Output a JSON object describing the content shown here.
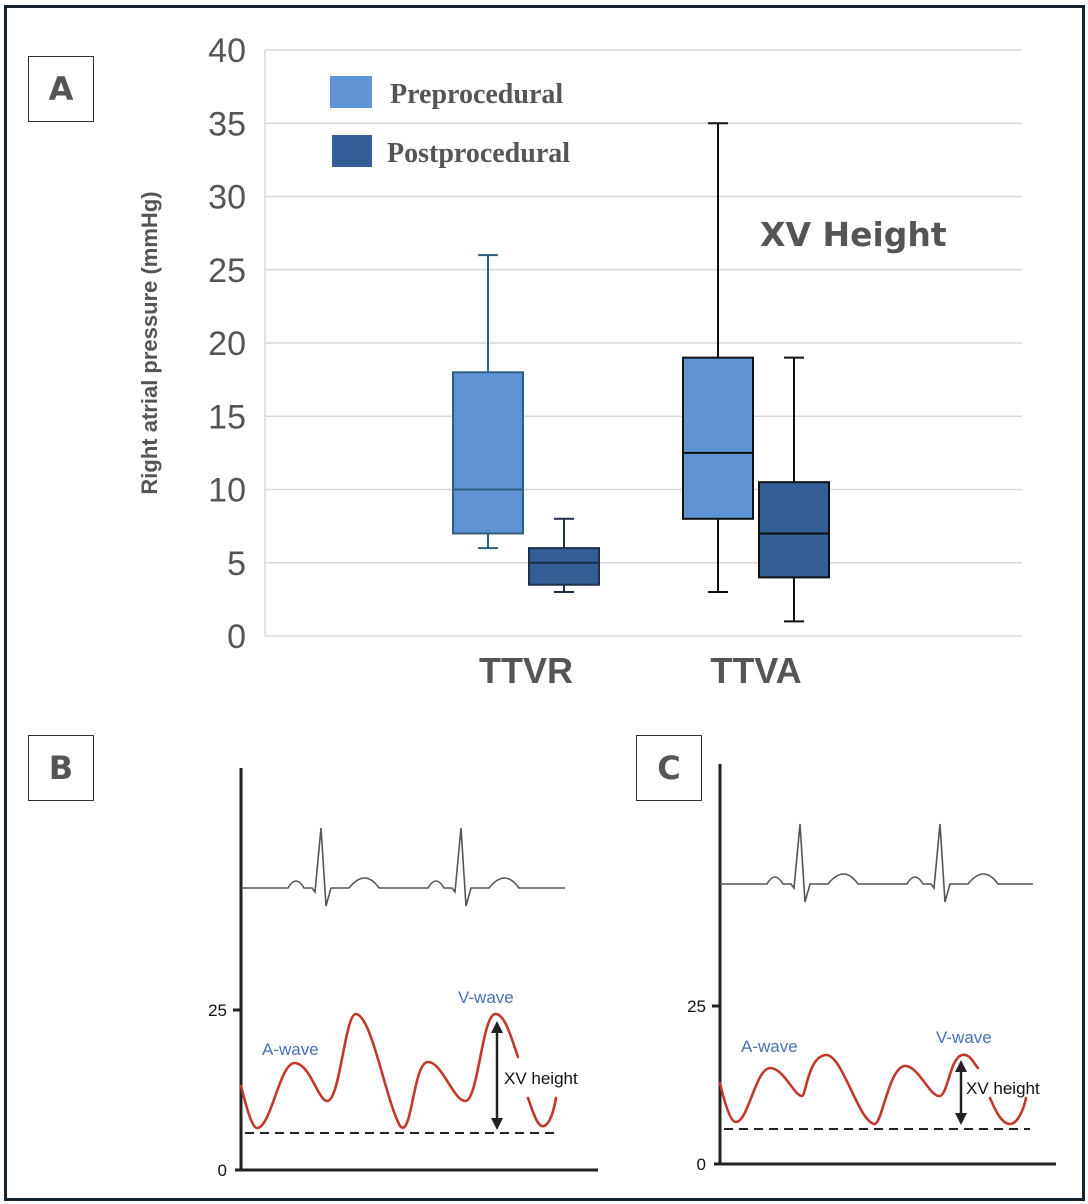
{
  "panels": {
    "A": {
      "label": "A"
    },
    "B": {
      "label": "B"
    },
    "C": {
      "label": "C"
    }
  },
  "colors": {
    "preprocedural": "#5f93d3",
    "postprocedural": "#345f96",
    "gridline": "#d9d9d9",
    "text": "#555555",
    "pressure_wave": "#c0392b",
    "wave_label": "#4a6fb5"
  },
  "chart_data": [
    {
      "type": "boxplot",
      "panel": "A",
      "title": "",
      "annotation": "XV Height",
      "xlabel": "",
      "ylabel": "Right atrial pressure (mmHg)",
      "ylim": [
        0,
        40
      ],
      "yticks": [
        0,
        5,
        10,
        15,
        20,
        25,
        30,
        35,
        40
      ],
      "grid": true,
      "legend_position": "top-left",
      "categories": [
        "TTVR",
        "TTVA"
      ],
      "series": [
        {
          "name": "Preprocedural",
          "color": "#5f93d3",
          "boxes": [
            {
              "category": "TTVR",
              "min": 6,
              "q1": 7,
              "median": 10,
              "q3": 18,
              "max": 26
            },
            {
              "category": "TTVA",
              "min": 3,
              "q1": 8,
              "median": 12.5,
              "q3": 19,
              "max": 35
            }
          ]
        },
        {
          "name": "Postprocedural",
          "color": "#345f96",
          "boxes": [
            {
              "category": "TTVR",
              "min": 3,
              "q1": 3.5,
              "median": 5,
              "q3": 6,
              "max": 8
            },
            {
              "category": "TTVA",
              "min": 1,
              "q1": 4,
              "median": 7,
              "q3": 10.5,
              "max": 19
            }
          ]
        }
      ]
    },
    {
      "type": "line",
      "panel": "B",
      "description": "Schematic ECG and right atrial pressure waveform with large XV height",
      "yticks": [
        0,
        25
      ],
      "labels": {
        "a_wave": "A-wave",
        "v_wave": "V-wave",
        "xv_height": "XV height"
      },
      "x_nadir_mmHg": 6,
      "v_peak_mmHg": 24
    },
    {
      "type": "line",
      "panel": "C",
      "description": "Schematic ECG and right atrial pressure waveform with reduced XV height",
      "yticks": [
        0,
        25
      ],
      "labels": {
        "a_wave": "A-wave",
        "v_wave": "V-wave",
        "xv_height": "XV height"
      },
      "x_nadir_mmHg": 6,
      "v_peak_mmHg": 17
    }
  ]
}
